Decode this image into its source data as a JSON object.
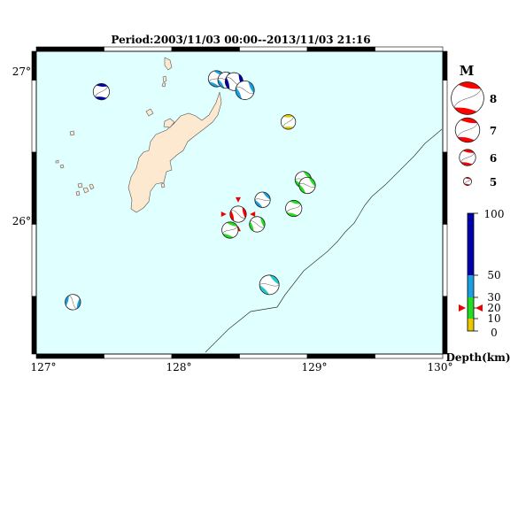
{
  "title": "Period:2003/11/03 00:00--2013/11/03 21:16",
  "map": {
    "lon_min": 127,
    "lon_max": 130,
    "lat_min": 25.1,
    "lat_max": 27.2,
    "x_tick_labels": [
      "127°",
      "128°",
      "129°",
      "130°"
    ],
    "y_tick_labels": [
      "26°",
      "27°"
    ],
    "ocean_color": "#e0ffff",
    "land_color": "#fde9cf"
  },
  "events": [
    {
      "lon": 127.48,
      "lat": 26.92,
      "mag": 6.0,
      "color": "#0000aa",
      "rot": -40
    },
    {
      "lon": 128.33,
      "lat": 27.01,
      "mag": 6.0,
      "color": "#1aa0e0",
      "rot": -20
    },
    {
      "lon": 128.4,
      "lat": 27.0,
      "mag": 6.0,
      "color": "#1aa0e0",
      "rot": 10
    },
    {
      "lon": 128.46,
      "lat": 26.99,
      "mag": 6.2,
      "color": "#0000aa",
      "rot": 30
    },
    {
      "lon": 128.54,
      "lat": 26.93,
      "mag": 6.3,
      "color": "#1aa0e0",
      "rot": 20
    },
    {
      "lon": 128.86,
      "lat": 26.71,
      "mag": 5.8,
      "color": "#e8c800",
      "rot": -45
    },
    {
      "lon": 128.97,
      "lat": 26.31,
      "mag": 6.0,
      "color": "#22dd22",
      "rot": 0
    },
    {
      "lon": 129.0,
      "lat": 26.27,
      "mag": 6.0,
      "color": "#22dd22",
      "rot": 10
    },
    {
      "lon": 128.67,
      "lat": 26.17,
      "mag": 5.9,
      "color": "#1aa0e0",
      "rot": 0
    },
    {
      "lon": 128.9,
      "lat": 26.11,
      "mag": 6.0,
      "color": "#22dd22",
      "rot": -30
    },
    {
      "lon": 128.49,
      "lat": 26.07,
      "mag": 6.0,
      "color": "#ff0000",
      "rot": 30,
      "current": true
    },
    {
      "lon": 128.63,
      "lat": 26.0,
      "mag": 5.9,
      "color": "#22dd22",
      "rot": 25
    },
    {
      "lon": 128.43,
      "lat": 25.96,
      "mag": 6.0,
      "color": "#22dd22",
      "rot": -25
    },
    {
      "lon": 128.72,
      "lat": 25.58,
      "mag": 6.4,
      "color": "#22c8c8",
      "rot": 0
    },
    {
      "lon": 127.27,
      "lat": 25.46,
      "mag": 5.9,
      "color": "#1aa0e0",
      "rot": 60
    }
  ],
  "legend": {
    "mag_title": "M",
    "mag_items": [
      {
        "label": "8",
        "mag": 8
      },
      {
        "label": "7",
        "mag": 7
      },
      {
        "label": "6",
        "mag": 6
      },
      {
        "label": "5",
        "mag": 5
      }
    ],
    "depth_ticks": [
      "100",
      "50",
      "30",
      "20",
      "10",
      "0"
    ],
    "depth_title": "Depth(km)",
    "current_depth_km": 20
  }
}
